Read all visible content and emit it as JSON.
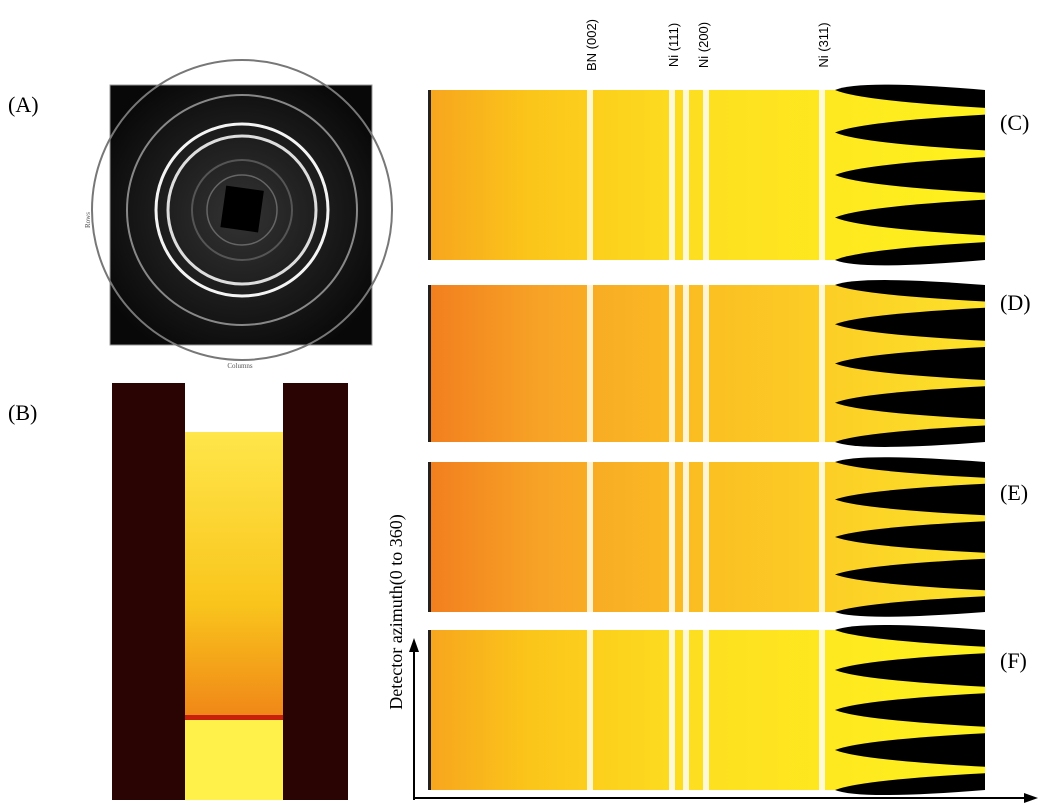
{
  "panels": {
    "a": {
      "label": "(A)",
      "x_axis": "Columns",
      "y_axis": "Rows"
    },
    "b": {
      "label": "(B)"
    },
    "c": {
      "label": "(C)"
    },
    "d": {
      "label": "(D)"
    },
    "e": {
      "label": "(E)"
    },
    "f": {
      "label": "(F)"
    }
  },
  "peaks": [
    "BN (002)",
    "Ni (111)",
    "Ni (200)",
    "Ni (311)"
  ],
  "y_axis_label": "Detector azimuth(0 to 360)"
}
